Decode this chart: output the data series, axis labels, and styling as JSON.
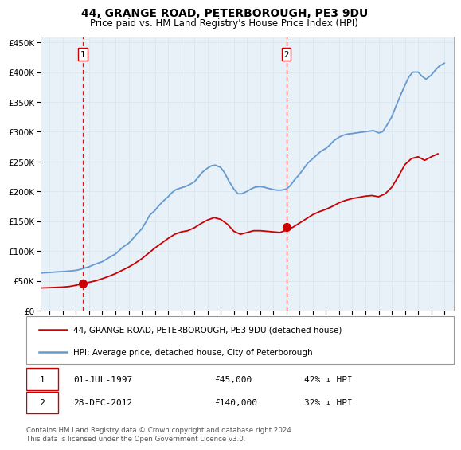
{
  "title": "44, GRANGE ROAD, PETERBOROUGH, PE3 9DU",
  "subtitle": "Price paid vs. HM Land Registry's House Price Index (HPI)",
  "title_fontsize": 10,
  "subtitle_fontsize": 8.5,
  "ytick_labels": [
    "£0",
    "£50K",
    "£100K",
    "£150K",
    "£200K",
    "£250K",
    "£300K",
    "£350K",
    "£400K",
    "£450K"
  ],
  "yticks": [
    0,
    50000,
    100000,
    150000,
    200000,
    250000,
    300000,
    350000,
    400000,
    450000
  ],
  "ylim": [
    0,
    460000
  ],
  "xlim_start": 1994.3,
  "xlim_end": 2025.7,
  "xticks": [
    1995,
    1996,
    1997,
    1998,
    1999,
    2000,
    2001,
    2002,
    2003,
    2004,
    2005,
    2006,
    2007,
    2008,
    2009,
    2010,
    2011,
    2012,
    2013,
    2014,
    2015,
    2016,
    2017,
    2018,
    2019,
    2020,
    2021,
    2022,
    2023,
    2024,
    2025
  ],
  "grid_color": "#dce8f0",
  "plot_bg": "#e8f0f8",
  "marker1_x": 1997.5,
  "marker1_y": 45000,
  "marker1_label": "1",
  "marker2_x": 2012.98,
  "marker2_y": 140000,
  "marker2_label": "2",
  "vline1_x": 1997.5,
  "vline2_x": 2012.98,
  "legend_line1": "44, GRANGE ROAD, PETERBOROUGH, PE3 9DU (detached house)",
  "legend_line2": "HPI: Average price, detached house, City of Peterborough",
  "table_row1": [
    "1",
    "01-JUL-1997",
    "£45,000",
    "42% ↓ HPI"
  ],
  "table_row2": [
    "2",
    "28-DEC-2012",
    "£140,000",
    "32% ↓ HPI"
  ],
  "footer": "Contains HM Land Registry data © Crown copyright and database right 2024.\nThis data is licensed under the Open Government Licence v3.0.",
  "red_color": "#cc0000",
  "blue_color": "#6699cc",
  "hpi_data_x": [
    1994.3,
    1994.6,
    1995.0,
    1995.3,
    1995.6,
    1996.0,
    1996.3,
    1996.6,
    1997.0,
    1997.3,
    1997.6,
    1998.0,
    1998.3,
    1998.6,
    1999.0,
    1999.3,
    1999.6,
    2000.0,
    2000.3,
    2000.6,
    2001.0,
    2001.3,
    2001.6,
    2002.0,
    2002.3,
    2002.6,
    2003.0,
    2003.3,
    2003.6,
    2004.0,
    2004.3,
    2004.6,
    2005.0,
    2005.3,
    2005.6,
    2006.0,
    2006.3,
    2006.6,
    2007.0,
    2007.3,
    2007.6,
    2008.0,
    2008.3,
    2008.6,
    2009.0,
    2009.3,
    2009.6,
    2010.0,
    2010.3,
    2010.6,
    2011.0,
    2011.3,
    2011.6,
    2012.0,
    2012.3,
    2012.6,
    2013.0,
    2013.3,
    2013.6,
    2014.0,
    2014.3,
    2014.6,
    2015.0,
    2015.3,
    2015.6,
    2016.0,
    2016.3,
    2016.6,
    2017.0,
    2017.3,
    2017.6,
    2018.0,
    2018.3,
    2018.6,
    2019.0,
    2019.3,
    2019.6,
    2020.0,
    2020.3,
    2020.6,
    2021.0,
    2021.3,
    2021.6,
    2022.0,
    2022.3,
    2022.6,
    2023.0,
    2023.3,
    2023.6,
    2024.0,
    2024.3,
    2024.6,
    2025.0
  ],
  "hpi_data_y": [
    63000,
    63500,
    64000,
    64500,
    65000,
    65500,
    66000,
    66500,
    67500,
    69000,
    71000,
    73500,
    76500,
    79000,
    82000,
    86000,
    90000,
    95000,
    101000,
    107000,
    113000,
    120000,
    128000,
    137000,
    148000,
    160000,
    168000,
    176000,
    183000,
    191000,
    198000,
    203000,
    206000,
    208000,
    211000,
    216000,
    224000,
    232000,
    239000,
    243000,
    244000,
    240000,
    231000,
    218000,
    204000,
    196000,
    196000,
    200000,
    204000,
    207000,
    208000,
    207000,
    205000,
    203000,
    202000,
    202000,
    204000,
    210000,
    219000,
    229000,
    238000,
    247000,
    255000,
    261000,
    267000,
    272000,
    278000,
    285000,
    291000,
    294000,
    296000,
    297000,
    298000,
    299000,
    300000,
    301000,
    302000,
    298000,
    300000,
    310000,
    325000,
    342000,
    358000,
    378000,
    392000,
    400000,
    400000,
    393000,
    388000,
    395000,
    403000,
    410000,
    415000
  ],
  "price_data_x": [
    1994.3,
    1995.0,
    1995.5,
    1996.0,
    1996.5,
    1997.0,
    1997.5,
    1998.0,
    1998.5,
    1999.0,
    1999.5,
    2000.0,
    2000.5,
    2001.0,
    2001.5,
    2002.0,
    2002.5,
    2003.0,
    2003.5,
    2004.0,
    2004.5,
    2005.0,
    2005.5,
    2006.0,
    2006.5,
    2007.0,
    2007.5,
    2008.0,
    2008.5,
    2009.0,
    2009.5,
    2010.0,
    2010.5,
    2011.0,
    2011.5,
    2012.0,
    2012.5,
    2013.0,
    2013.5,
    2014.0,
    2014.5,
    2015.0,
    2015.5,
    2016.0,
    2016.5,
    2017.0,
    2017.5,
    2018.0,
    2018.5,
    2019.0,
    2019.5,
    2020.0,
    2020.5,
    2021.0,
    2021.5,
    2022.0,
    2022.5,
    2023.0,
    2023.5,
    2024.0,
    2024.5
  ],
  "price_data_y": [
    38000,
    38500,
    39000,
    39500,
    40500,
    42500,
    45000,
    47500,
    50000,
    53500,
    57500,
    62000,
    67500,
    73000,
    79500,
    87000,
    96000,
    105000,
    113000,
    121000,
    128000,
    132000,
    134000,
    139000,
    146000,
    152000,
    156000,
    153000,
    145000,
    133000,
    128000,
    131000,
    134000,
    134000,
    133000,
    132000,
    131000,
    135000,
    140000,
    147000,
    154000,
    161000,
    166000,
    170000,
    175000,
    181000,
    185000,
    188000,
    190000,
    192000,
    193000,
    191000,
    196000,
    207000,
    225000,
    245000,
    255000,
    258000,
    252000,
    258000,
    263000
  ]
}
